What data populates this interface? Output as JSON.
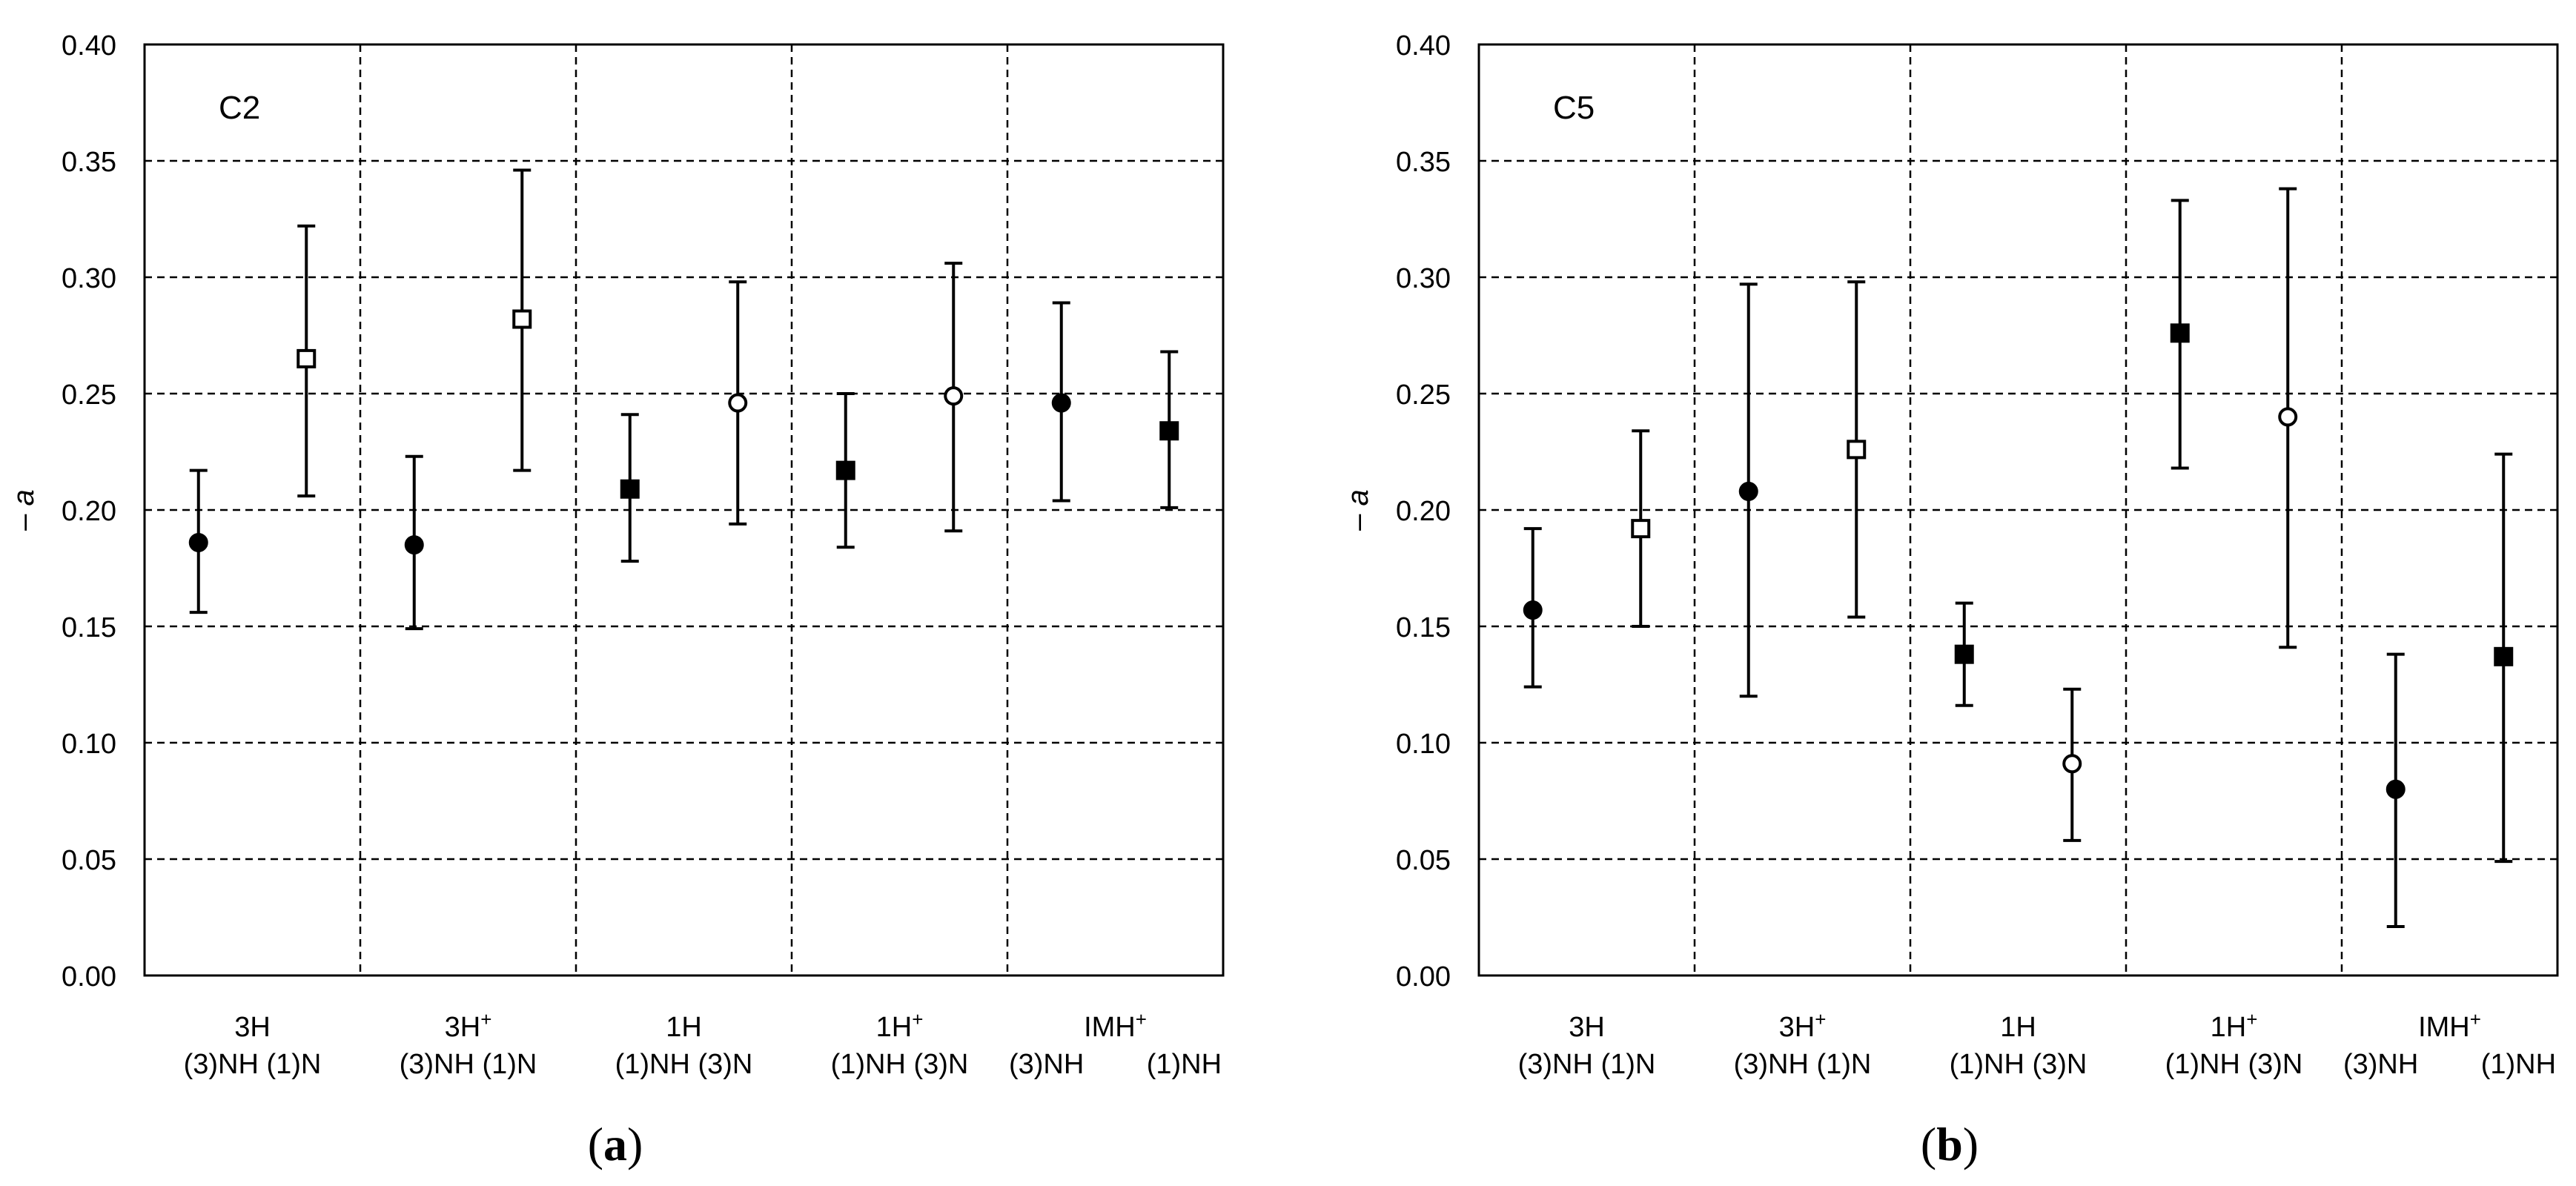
{
  "chart_data": [
    {
      "type": "scatter",
      "panel_label": "C2",
      "caption_letter": "a",
      "ylabel": "– a",
      "ylim": [
        0,
        0.4
      ],
      "yticks": [
        "0.00",
        "0.05",
        "0.10",
        "0.15",
        "0.20",
        "0.25",
        "0.30",
        "0.35",
        "0.40"
      ],
      "grid": true,
      "groups": [
        {
          "top": "3H",
          "sup": "",
          "bottom": "(3)NH (1)N"
        },
        {
          "top": "3H",
          "sup": "+",
          "bottom": "(3)NH (1)N"
        },
        {
          "top": "1H",
          "sup": "",
          "bottom": "(1)NH (3)N"
        },
        {
          "top": "1H",
          "sup": "+",
          "bottom": "(1)NH (3)N"
        },
        {
          "top": "IMH",
          "sup": "+",
          "bottom": "(3)NH        (1)NH"
        }
      ],
      "points": [
        {
          "x": 0.25,
          "y": 0.186,
          "low": 0.156,
          "high": 0.217,
          "marker": "filled-circle"
        },
        {
          "x": 0.75,
          "y": 0.265,
          "low": 0.206,
          "high": 0.322,
          "marker": "open-square"
        },
        {
          "x": 1.25,
          "y": 0.185,
          "low": 0.149,
          "high": 0.223,
          "marker": "filled-circle"
        },
        {
          "x": 1.75,
          "y": 0.282,
          "low": 0.217,
          "high": 0.346,
          "marker": "open-square"
        },
        {
          "x": 2.25,
          "y": 0.209,
          "low": 0.178,
          "high": 0.241,
          "marker": "filled-square"
        },
        {
          "x": 2.75,
          "y": 0.246,
          "low": 0.194,
          "high": 0.298,
          "marker": "open-circle"
        },
        {
          "x": 3.25,
          "y": 0.217,
          "low": 0.184,
          "high": 0.25,
          "marker": "filled-square"
        },
        {
          "x": 3.75,
          "y": 0.249,
          "low": 0.191,
          "high": 0.306,
          "marker": "open-circle"
        },
        {
          "x": 4.25,
          "y": 0.246,
          "low": 0.204,
          "high": 0.289,
          "marker": "filled-circle"
        },
        {
          "x": 4.75,
          "y": 0.234,
          "low": 0.201,
          "high": 0.268,
          "marker": "filled-square"
        }
      ]
    },
    {
      "type": "scatter",
      "panel_label": "C5",
      "caption_letter": "b",
      "ylabel": "– a",
      "ylim": [
        0,
        0.4
      ],
      "yticks": [
        "0.00",
        "0.05",
        "0.10",
        "0.15",
        "0.20",
        "0.25",
        "0.30",
        "0.35",
        "0.40"
      ],
      "grid": true,
      "groups": [
        {
          "top": "3H",
          "sup": "",
          "bottom": "(3)NH (1)N"
        },
        {
          "top": "3H",
          "sup": "+",
          "bottom": "(3)NH (1)N"
        },
        {
          "top": "1H",
          "sup": "",
          "bottom": "(1)NH (3)N"
        },
        {
          "top": "1H",
          "sup": "+",
          "bottom": "(1)NH (3)N"
        },
        {
          "top": "IMH",
          "sup": "+",
          "bottom": "(3)NH        (1)NH"
        }
      ],
      "points": [
        {
          "x": 0.25,
          "y": 0.157,
          "low": 0.124,
          "high": 0.192,
          "marker": "filled-circle"
        },
        {
          "x": 0.75,
          "y": 0.192,
          "low": 0.15,
          "high": 0.234,
          "marker": "open-square"
        },
        {
          "x": 1.25,
          "y": 0.208,
          "low": 0.12,
          "high": 0.297,
          "marker": "filled-circle"
        },
        {
          "x": 1.75,
          "y": 0.226,
          "low": 0.154,
          "high": 0.298,
          "marker": "open-square"
        },
        {
          "x": 2.25,
          "y": 0.138,
          "low": 0.116,
          "high": 0.16,
          "marker": "filled-square"
        },
        {
          "x": 2.75,
          "y": 0.091,
          "low": 0.058,
          "high": 0.123,
          "marker": "open-circle"
        },
        {
          "x": 3.25,
          "y": 0.276,
          "low": 0.218,
          "high": 0.333,
          "marker": "filled-square"
        },
        {
          "x": 3.75,
          "y": 0.24,
          "low": 0.141,
          "high": 0.338,
          "marker": "open-circle"
        },
        {
          "x": 4.25,
          "y": 0.08,
          "low": 0.021,
          "high": 0.138,
          "marker": "filled-circle"
        },
        {
          "x": 4.75,
          "y": 0.137,
          "low": 0.049,
          "high": 0.224,
          "marker": "filled-square"
        }
      ]
    }
  ]
}
